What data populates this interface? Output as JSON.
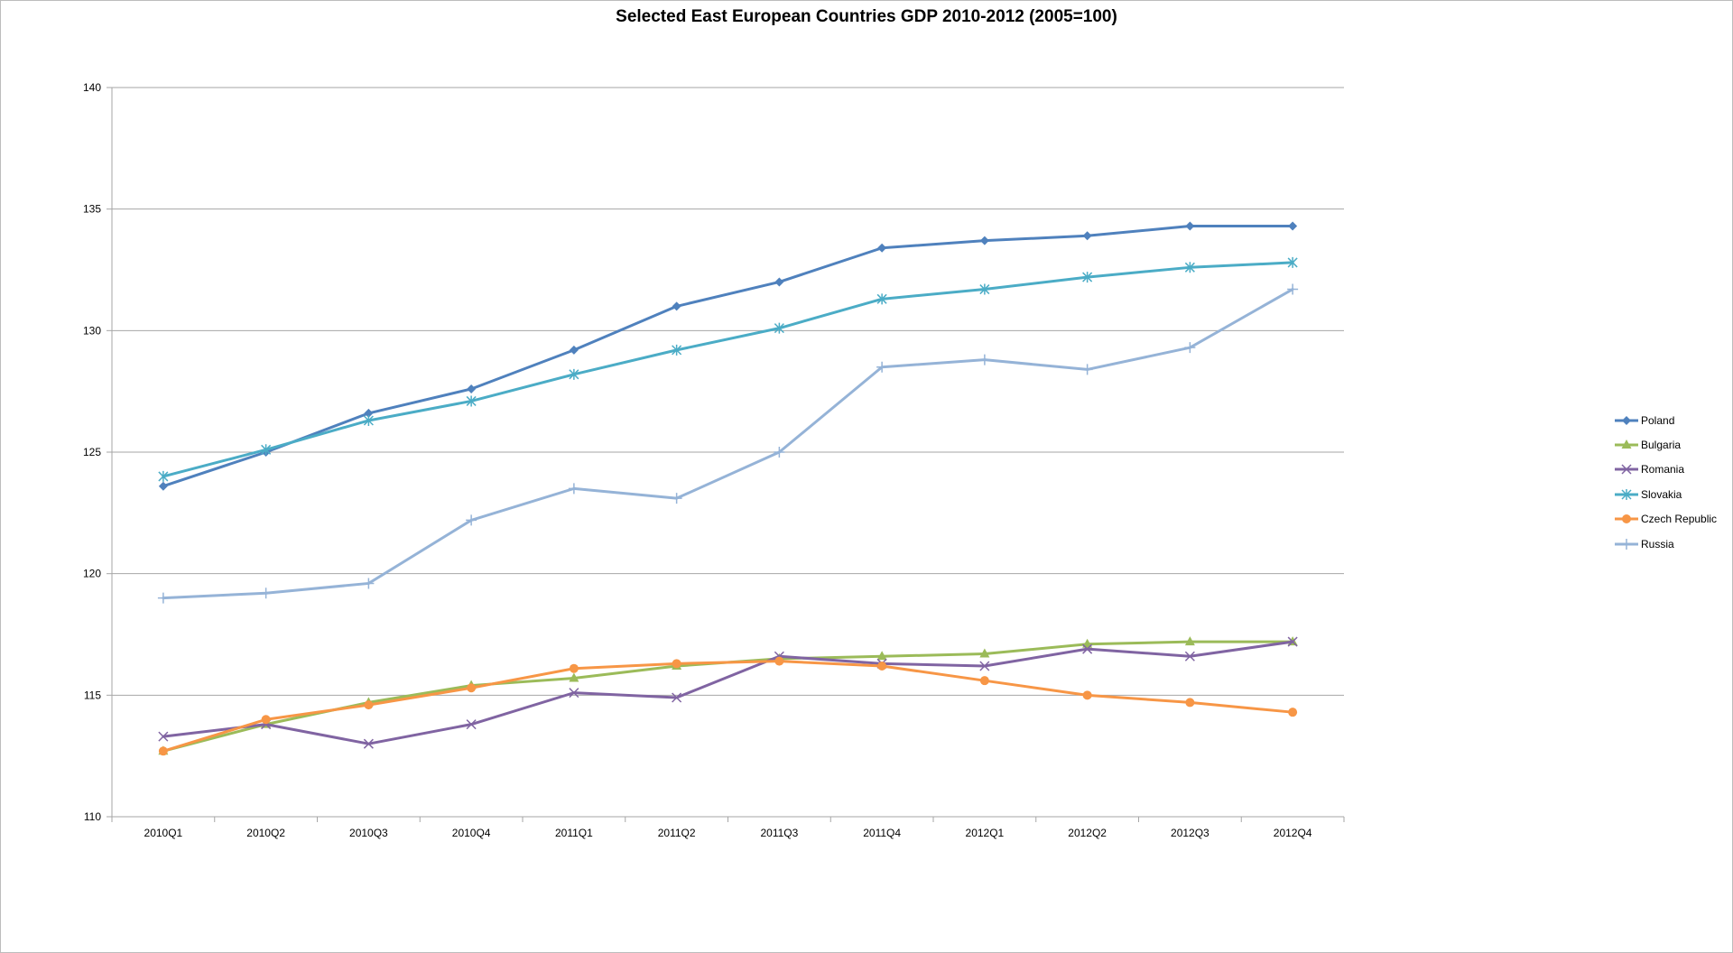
{
  "chart_data": {
    "type": "line",
    "title": "Selected East European Countries GDP 2010-2012 (2005=100)",
    "xlabel": "",
    "ylabel": "",
    "categories": [
      "2010Q1",
      "2010Q2",
      "2010Q3",
      "2010Q4",
      "2011Q1",
      "2011Q2",
      "2011Q3",
      "2011Q4",
      "2012Q1",
      "2012Q2",
      "2012Q3",
      "2012Q4"
    ],
    "ylim": [
      110,
      140
    ],
    "yticks": [
      110,
      115,
      120,
      125,
      130,
      135,
      140
    ],
    "grid": "horizontal",
    "legend_position": "right",
    "series": [
      {
        "name": "Poland",
        "color": "#4f81bd",
        "marker": "diamond",
        "values": [
          123.6,
          125.0,
          126.6,
          127.6,
          129.2,
          131.0,
          132.0,
          133.4,
          133.7,
          133.9,
          134.3,
          134.3
        ]
      },
      {
        "name": "Bulgaria",
        "color": "#9bbb59",
        "marker": "triangle",
        "values": [
          112.7,
          113.8,
          114.7,
          115.4,
          115.7,
          116.2,
          116.5,
          116.6,
          116.7,
          117.1,
          117.2,
          117.2
        ]
      },
      {
        "name": "Romania",
        "color": "#8064a2",
        "marker": "x",
        "values": [
          113.3,
          113.8,
          113.0,
          113.8,
          115.1,
          114.9,
          116.6,
          116.3,
          116.2,
          116.9,
          116.6,
          117.2
        ]
      },
      {
        "name": "Slovakia",
        "color": "#4bacc6",
        "marker": "star",
        "values": [
          124.0,
          125.1,
          126.3,
          127.1,
          128.2,
          129.2,
          130.1,
          131.3,
          131.7,
          132.2,
          132.6,
          132.8
        ]
      },
      {
        "name": "Czech Republic",
        "color": "#f79646",
        "marker": "circle",
        "values": [
          112.7,
          114.0,
          114.6,
          115.3,
          116.1,
          116.3,
          116.4,
          116.2,
          115.6,
          115.0,
          114.7,
          114.3
        ]
      },
      {
        "name": "Russia",
        "color": "#95b3d7",
        "marker": "plus",
        "values": [
          119.0,
          119.2,
          119.6,
          122.2,
          123.5,
          123.1,
          125.0,
          128.5,
          128.8,
          128.4,
          129.3,
          131.7
        ]
      }
    ]
  }
}
